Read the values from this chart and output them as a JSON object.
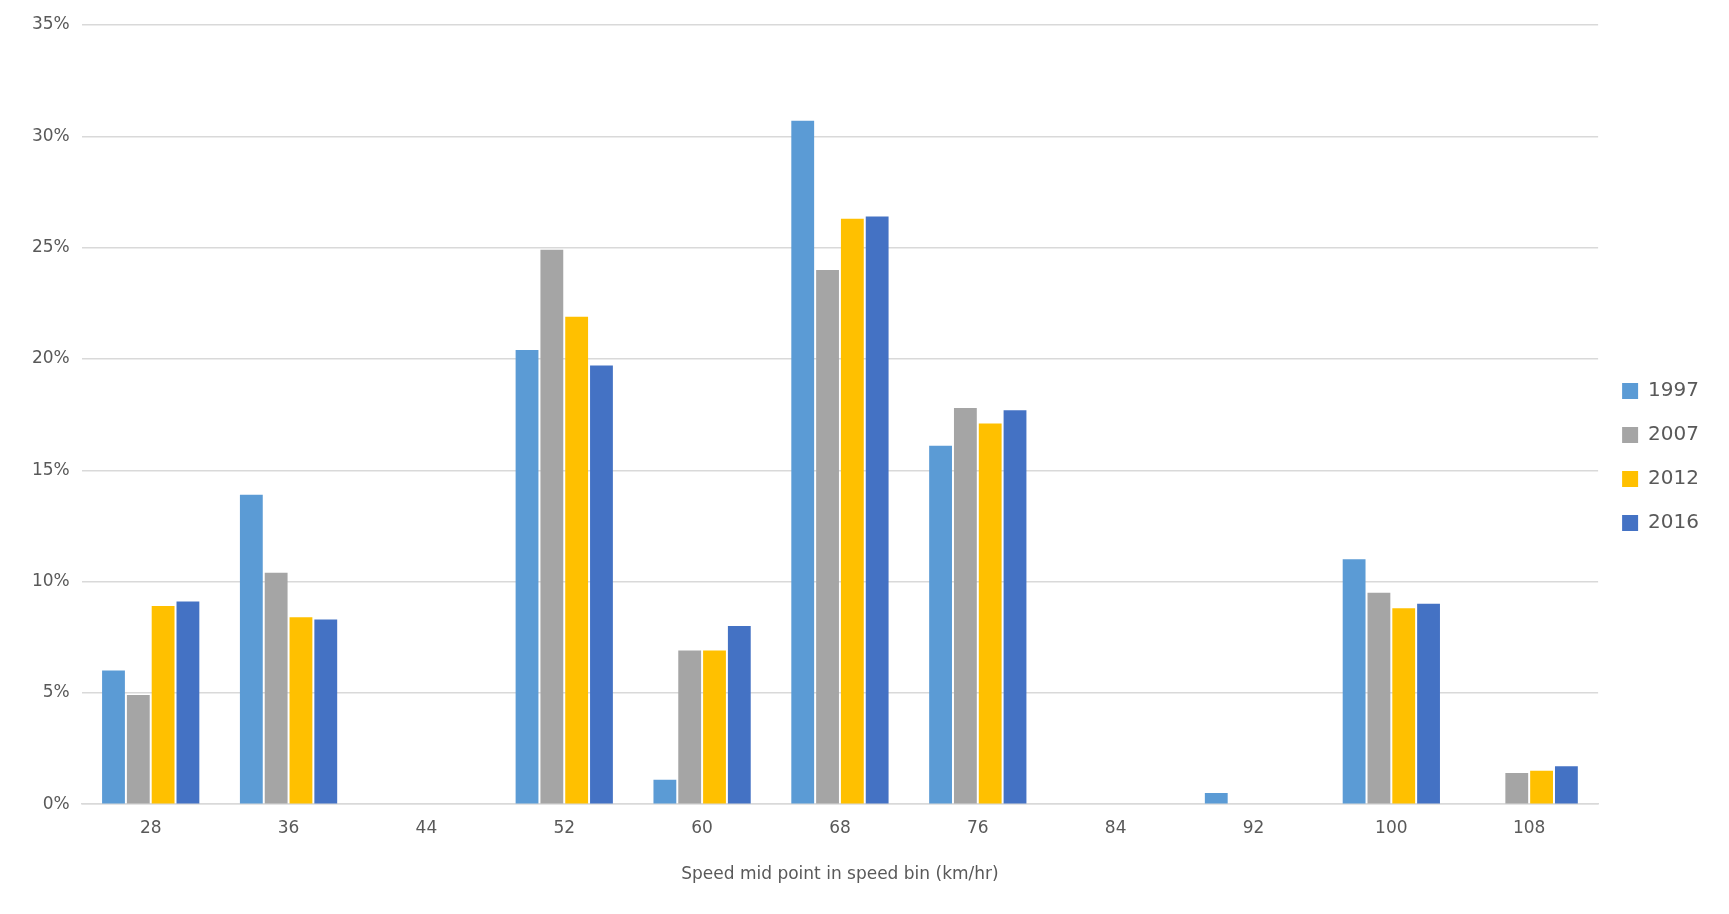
{
  "chart_data": {
    "type": "bar",
    "xlabel": "Speed mid point in speed bin (km/hr)",
    "categories": [
      "28",
      "36",
      "44",
      "52",
      "60",
      "68",
      "76",
      "84",
      "92",
      "100",
      "108"
    ],
    "series": [
      {
        "name": "1997",
        "color": "#5b9bd5",
        "values": [
          6.0,
          13.9,
          0,
          20.4,
          1.1,
          30.7,
          16.1,
          0,
          0.5,
          11.0,
          0
        ]
      },
      {
        "name": "2007",
        "color": "#a5a5a5",
        "values": [
          4.9,
          10.4,
          0,
          24.9,
          6.9,
          24.0,
          17.8,
          0,
          0,
          9.5,
          1.4
        ]
      },
      {
        "name": "2012",
        "color": "#ffc000",
        "values": [
          8.9,
          8.4,
          0,
          21.9,
          6.9,
          26.3,
          17.1,
          0,
          0,
          8.8,
          1.5
        ]
      },
      {
        "name": "2016",
        "color": "#4472c4",
        "values": [
          9.1,
          8.3,
          0,
          19.7,
          8.0,
          26.4,
          17.7,
          0,
          0,
          9.0,
          1.7
        ]
      }
    ],
    "ylim": [
      0,
      35
    ],
    "yticks": [
      {
        "value": 0,
        "label": "0%"
      },
      {
        "value": 5,
        "label": "5%"
      },
      {
        "value": 10,
        "label": "10%"
      },
      {
        "value": 15,
        "label": "15%"
      },
      {
        "value": 20,
        "label": "20%"
      },
      {
        "value": 25,
        "label": "25%"
      },
      {
        "value": 30,
        "label": "30%"
      },
      {
        "value": 35,
        "label": "35%"
      }
    ],
    "grid": "y",
    "legend": "right"
  }
}
